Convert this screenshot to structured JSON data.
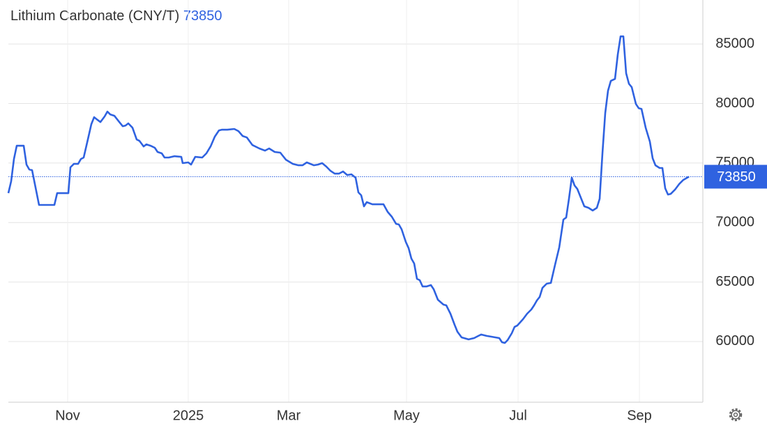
{
  "chart_data": {
    "type": "line",
    "title": "Lithium Carbonate (CNY/T)",
    "last_value": 73850,
    "color": "#2f62e0",
    "x": [
      0,
      1,
      2,
      3,
      5.5,
      6.5,
      7.5,
      8.5,
      11,
      12,
      16.5,
      17.5,
      21.5,
      22.25,
      23.5,
      25,
      26,
      27,
      28.5,
      29.75,
      30.75,
      32,
      33,
      34.5,
      35.5,
      36.5,
      38,
      40,
      41,
      42,
      43,
      44.5,
      46,
      47,
      48.5,
      49.5,
      51,
      52.5,
      53.5,
      55,
      56,
      57.5,
      59.5,
      62,
      62.5,
      64.5,
      65.5,
      67,
      69.5,
      71,
      72.5,
      74,
      75.5,
      76.5,
      78.5,
      81,
      82.5,
      84,
      85.5,
      87.5,
      90,
      92,
      93.5,
      95.5,
      97.5,
      99.5,
      102,
      104,
      105.5,
      107,
      109.5,
      111,
      112.5,
      114,
      115.5,
      117,
      118.5,
      120,
      121.5,
      123,
      124.5,
      125.5,
      126.5,
      127.5,
      128.5,
      130.5,
      134.5,
      136,
      137.5,
      139,
      140,
      141,
      142.5,
      143.5,
      144.5,
      145.5,
      146.5,
      147.5,
      148.5,
      150,
      151.5,
      152.5,
      154,
      156,
      157,
      158.5,
      160,
      161,
      162.5,
      165,
      167,
      168.5,
      169.5,
      171.5,
      173,
      176,
      177,
      178,
      179,
      180.5,
      181.5,
      182.5,
      184.5,
      186,
      187.5,
      188.5,
      189.5,
      190.5,
      191.5,
      193,
      194.5,
      196,
      197.5,
      199,
      200,
      201,
      202,
      203,
      204,
      205.5,
      206.5,
      208,
      209.5,
      211,
      212,
      213,
      214,
      215,
      216,
      217.5,
      218.5,
      219.5,
      220.5,
      221.5,
      222.5,
      223.5,
      225,
      226,
      227,
      228.5,
      230,
      231,
      232,
      233.5,
      234.5,
      235.5,
      236.5,
      237.5,
      239,
      240.5,
      242,
      244
    ],
    "values": [
      72470,
      73470,
      75340,
      76450,
      76450,
      74870,
      74460,
      74400,
      71480,
      71480,
      71480,
      72470,
      72470,
      74640,
      74930,
      74930,
      75340,
      75460,
      76980,
      78270,
      78850,
      78620,
      78440,
      78910,
      79320,
      79090,
      78970,
      78380,
      78090,
      78150,
      78330,
      77970,
      76980,
      76860,
      76390,
      76570,
      76450,
      76280,
      75930,
      75810,
      75460,
      75460,
      75570,
      75520,
      74990,
      75050,
      74870,
      75520,
      75460,
      75810,
      76390,
      77210,
      77740,
      77800,
      77800,
      77860,
      77680,
      77270,
      77150,
      76510,
      76220,
      76040,
      76220,
      75930,
      75870,
      75280,
      74930,
      74810,
      74810,
      75050,
      74810,
      74870,
      74990,
      74700,
      74340,
      74110,
      74110,
      74290,
      73990,
      74050,
      73760,
      72530,
      72290,
      71360,
      71710,
      71530,
      71530,
      70890,
      70480,
      69890,
      69840,
      69430,
      68370,
      67850,
      66970,
      66560,
      65270,
      65150,
      64630,
      64630,
      64740,
      64390,
      63510,
      63100,
      63040,
      62340,
      61400,
      60820,
      60350,
      60180,
      60290,
      60470,
      60590,
      60470,
      60410,
      60290,
      59940,
      59880,
      60120,
      60700,
      61230,
      61350,
      61870,
      62340,
      62690,
      63040,
      63450,
      63750,
      64510,
      64860,
      64920,
      66440,
      67900,
      70250,
      70420,
      72000,
      73760,
      73110,
      72820,
      71940,
      71360,
      71240,
      71010,
      71240,
      72000,
      75810,
      79200,
      81080,
      81900,
      82070,
      84120,
      85640,
      85640,
      82540,
      81660,
      81370,
      79960,
      79610,
      79550,
      77970,
      76800,
      75400,
      74810,
      74580,
      74580,
      72880,
      72350,
      72410,
      72760,
      73230,
      73580,
      73850
    ],
    "xlim": [
      0,
      249
    ],
    "xticks": [
      {
        "value": 21.25,
        "label": "Nov"
      },
      {
        "value": 64.5,
        "label": "2025"
      },
      {
        "value": 100.5,
        "label": "Mar"
      },
      {
        "value": 142.75,
        "label": "May"
      },
      {
        "value": 182.75,
        "label": "Jul"
      },
      {
        "value": 226.25,
        "label": "Sep"
      }
    ],
    "ylim": [
      54900,
      88700
    ],
    "yticks": [
      60000,
      65000,
      70000,
      75000,
      80000,
      85000
    ],
    "grid": true
  }
}
